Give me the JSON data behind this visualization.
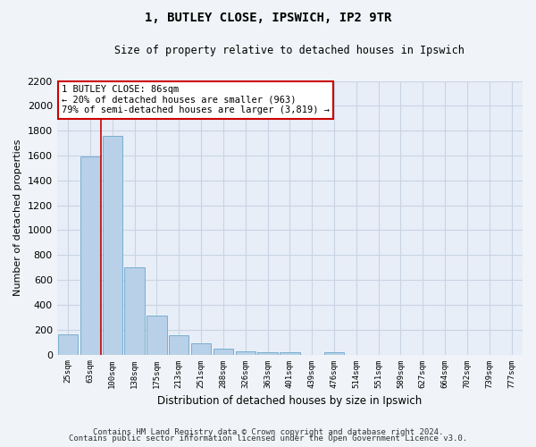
{
  "title1": "1, BUTLEY CLOSE, IPSWICH, IP2 9TR",
  "title2": "Size of property relative to detached houses in Ipswich",
  "xlabel": "Distribution of detached houses by size in Ipswich",
  "ylabel": "Number of detached properties",
  "categories": [
    "25sqm",
    "63sqm",
    "100sqm",
    "138sqm",
    "175sqm",
    "213sqm",
    "251sqm",
    "288sqm",
    "326sqm",
    "363sqm",
    "401sqm",
    "439sqm",
    "476sqm",
    "514sqm",
    "551sqm",
    "589sqm",
    "627sqm",
    "664sqm",
    "702sqm",
    "739sqm",
    "777sqm"
  ],
  "values": [
    160,
    1595,
    1755,
    700,
    315,
    155,
    90,
    50,
    28,
    18,
    18,
    0,
    18,
    0,
    0,
    0,
    0,
    0,
    0,
    0,
    0
  ],
  "bar_color": "#b8d0e8",
  "bar_edge_color": "#7aaed0",
  "redline_x": 1.5,
  "annotation_line1": "1 BUTLEY CLOSE: 86sqm",
  "annotation_line2": "← 20% of detached houses are smaller (963)",
  "annotation_line3": "79% of semi-detached houses are larger (3,819) →",
  "annotation_box_color": "white",
  "annotation_box_edge_color": "#cc0000",
  "redline_color": "#cc0000",
  "ylim": [
    0,
    2200
  ],
  "yticks": [
    0,
    200,
    400,
    600,
    800,
    1000,
    1200,
    1400,
    1600,
    1800,
    2000,
    2200
  ],
  "grid_color": "#c8d4e4",
  "background_color": "#e8eef8",
  "fig_background_color": "#f0f4f8",
  "footer1": "Contains HM Land Registry data © Crown copyright and database right 2024.",
  "footer2": "Contains public sector information licensed under the Open Government Licence v3.0."
}
